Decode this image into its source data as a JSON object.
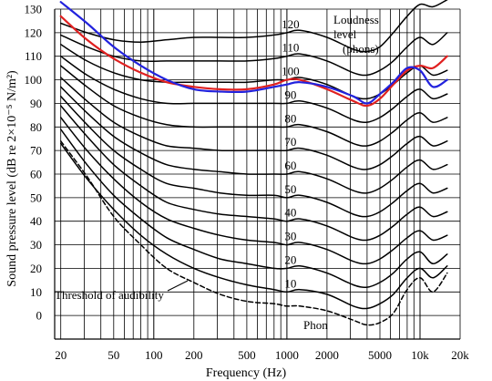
{
  "chart_data": {
    "type": "line",
    "xlabel": "Frequency (Hz)",
    "ylabel": "Sound pressure level (dB re 2×10⁻⁵ N/m²)",
    "x_scale": "log",
    "xlim": [
      18,
      20000
    ],
    "ylim": [
      -10,
      130
    ],
    "grid": true,
    "x_tick_labels": [
      "20",
      "50",
      "100",
      "200",
      "500",
      "1000",
      "2000",
      "5000",
      "10k",
      "20k"
    ],
    "x_tick_values": [
      20,
      50,
      100,
      200,
      500,
      1000,
      2000,
      5000,
      10000,
      20000
    ],
    "y_ticks": [
      0,
      10,
      20,
      30,
      40,
      50,
      60,
      70,
      80,
      90,
      100,
      110,
      120,
      130
    ],
    "legend_title": [
      "Loudness",
      "level",
      "(phons)"
    ],
    "threshold_label": "Threshold of audibility",
    "phon_label": "Phon",
    "x": [
      20,
      31.5,
      50,
      80,
      125,
      200,
      315,
      500,
      800,
      1000,
      1250,
      2000,
      3150,
      4000,
      5000,
      6300,
      8000,
      10000,
      12500,
      16000
    ],
    "series": [
      {
        "name": "10",
        "label": "10",
        "color": "#000000",
        "values": [
          73,
          58,
          45,
          34,
          26,
          20,
          16,
          13,
          11,
          10,
          11,
          9,
          4,
          3,
          5,
          9,
          16,
          20,
          16,
          21
        ]
      },
      {
        "name": "20",
        "label": "20",
        "color": "#000000",
        "values": [
          79,
          64,
          51,
          41,
          33,
          28,
          24,
          22,
          20,
          20,
          21,
          18,
          13,
          12,
          14,
          18,
          24,
          27,
          22,
          26
        ]
      },
      {
        "name": "30",
        "label": "30",
        "color": "#000000",
        "values": [
          84,
          70,
          58,
          48,
          41,
          37,
          34,
          32,
          31,
          30,
          31,
          28,
          23,
          22,
          24,
          28,
          33,
          36,
          32,
          34
        ]
      },
      {
        "name": "40",
        "label": "40",
        "color": "#000000",
        "values": [
          89,
          76,
          64,
          55,
          48,
          45,
          43,
          42,
          41,
          40,
          41,
          38,
          33,
          32,
          34,
          38,
          43,
          46,
          42,
          44
        ]
      },
      {
        "name": "50",
        "label": "50",
        "color": "#000000",
        "values": [
          93,
          81,
          70,
          62,
          56,
          54,
          52,
          51,
          51,
          50,
          51,
          48,
          43,
          42,
          44,
          48,
          53,
          56,
          52,
          54
        ]
      },
      {
        "name": "60",
        "label": "60",
        "color": "#000000",
        "values": [
          97,
          86,
          76,
          69,
          64,
          62,
          61,
          60,
          60,
          60,
          61,
          58,
          53,
          52,
          54,
          58,
          63,
          66,
          62,
          64
        ]
      },
      {
        "name": "70",
        "label": "70",
        "color": "#000000",
        "values": [
          101,
          91,
          82,
          76,
          72,
          71,
          70,
          70,
          70,
          70,
          71,
          68,
          63,
          62,
          64,
          68,
          73,
          76,
          72,
          74
        ]
      },
      {
        "name": "80",
        "label": "80",
        "color": "#000000",
        "values": [
          106,
          97,
          89,
          84,
          81,
          80,
          80,
          80,
          80,
          80,
          81,
          78,
          73,
          72,
          74,
          78,
          83,
          86,
          82,
          84
        ]
      },
      {
        "name": "90",
        "label": "90",
        "color": "#000000",
        "values": [
          110,
          102,
          96,
          92,
          90,
          90,
          90,
          90,
          90,
          90,
          91,
          88,
          83,
          82,
          84,
          88,
          93,
          96,
          92,
          94
        ]
      },
      {
        "name": "100",
        "label": "100",
        "color": "#000000",
        "values": [
          115,
          108,
          103,
          100,
          99,
          99,
          99,
          99,
          100,
          100,
          101,
          98,
          93,
          92,
          94,
          98,
          103,
          106,
          102,
          104
        ]
      },
      {
        "name": "110",
        "label": "110",
        "color": "#000000",
        "values": [
          119,
          114,
          110,
          108,
          108,
          108,
          108,
          108,
          109,
          110,
          111,
          108,
          103,
          102,
          104,
          108,
          114,
          118,
          115,
          120
        ]
      },
      {
        "name": "120",
        "label": "120",
        "color": "#000000",
        "values": [
          124,
          120,
          117,
          116,
          117,
          118,
          118,
          118,
          119,
          120,
          121,
          118,
          113,
          112,
          114,
          120,
          127,
          132,
          131,
          134
        ]
      },
      {
        "name": "threshold",
        "label": "",
        "color": "#000000",
        "dashed": true,
        "values": [
          74,
          59,
          42,
          30,
          20,
          14,
          9,
          6,
          5,
          4,
          4,
          2,
          -2,
          -4,
          -3,
          1,
          11,
          16,
          10,
          18
        ]
      },
      {
        "name": "red",
        "label": "",
        "color": "#e02020",
        "values": [
          127,
          117,
          109,
          103,
          99,
          97,
          96,
          96,
          98,
          100,
          100,
          96,
          91,
          89,
          92,
          98,
          104,
          106,
          105,
          110
        ]
      },
      {
        "name": "blue",
        "label": "",
        "color": "#2222dd",
        "values": [
          133,
          124,
          114,
          106,
          100,
          96,
          95,
          95,
          97,
          98,
          99,
          97,
          93,
          90,
          94,
          99,
          105,
          104,
          97,
          100
        ]
      }
    ]
  }
}
